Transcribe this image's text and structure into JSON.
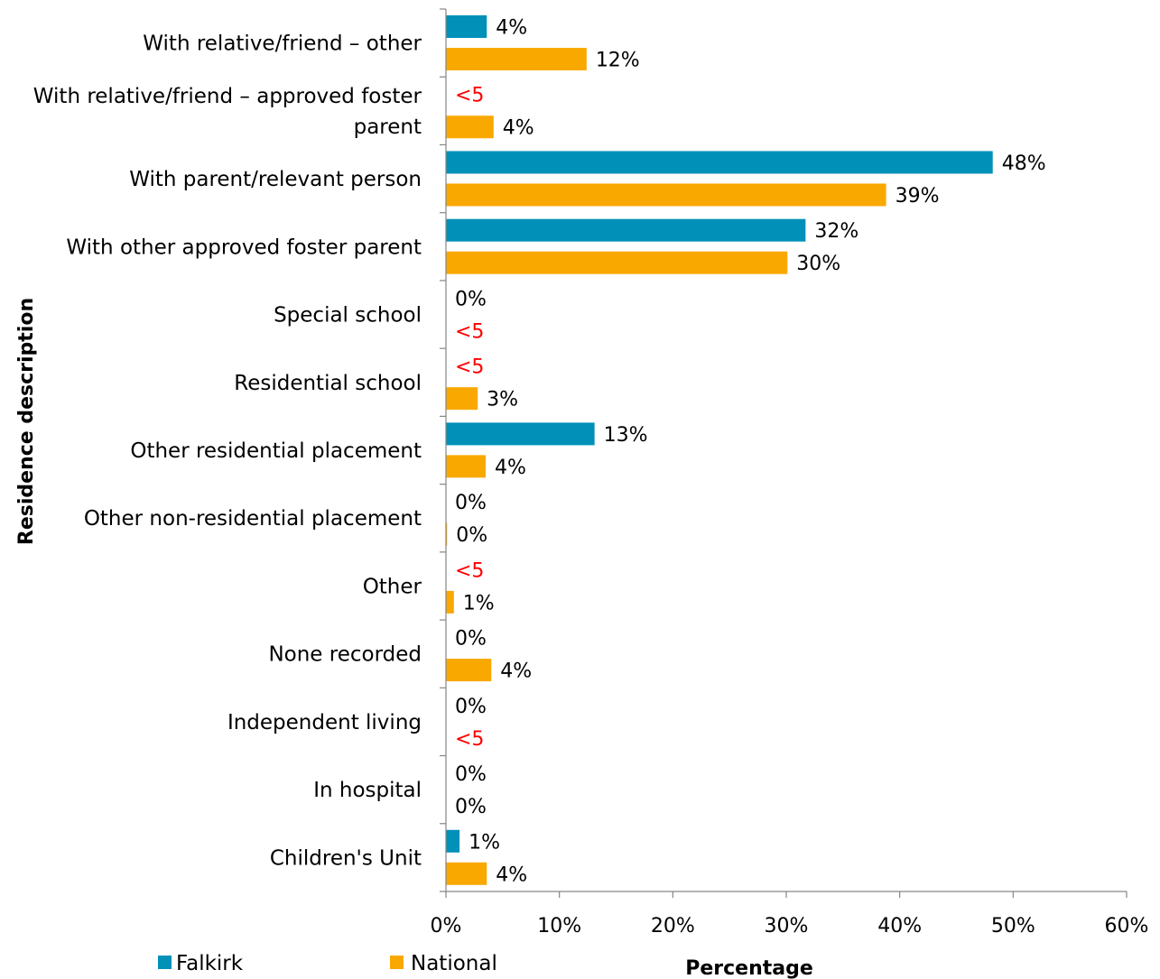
{
  "chart_data": {
    "type": "bar",
    "orientation": "horizontal",
    "xlabel": "Percentage",
    "ylabel": "Residence description",
    "xlim": [
      0,
      60
    ],
    "x_ticks": [
      "0%",
      "10%",
      "20%",
      "30%",
      "40%",
      "50%",
      "60%"
    ],
    "grid": false,
    "legend_position": "bottom-left",
    "colors": {
      "Falkirk": "#0090b8",
      "National": "#f9a800",
      "suppressed_label": "#ff0000"
    },
    "categories": [
      [
        "With relative/friend – other"
      ],
      [
        "With relative/friend – approved foster",
        "parent"
      ],
      [
        "With parent/relevant person"
      ],
      [
        "With other approved foster parent"
      ],
      [
        "Special school"
      ],
      [
        "Residential school"
      ],
      [
        "Other residential placement"
      ],
      [
        "Other non-residential placement"
      ],
      [
        "Other"
      ],
      [
        "None recorded"
      ],
      [
        "Independent living"
      ],
      [
        "In hospital"
      ],
      [
        "Children's Unit"
      ]
    ],
    "series": [
      {
        "name": "Falkirk",
        "values": [
          3.6,
          null,
          48.2,
          31.7,
          0,
          null,
          13.1,
          0,
          null,
          0,
          0,
          0,
          1.2
        ],
        "labels": [
          "4%",
          "<5",
          "48%",
          "32%",
          "0%",
          "<5",
          "13%",
          "0%",
          "<5",
          "0%",
          "0%",
          "0%",
          "1%"
        ]
      },
      {
        "name": "National",
        "values": [
          12.4,
          4.2,
          38.8,
          30.1,
          null,
          2.8,
          3.5,
          0.1,
          0.7,
          4.0,
          null,
          0,
          3.6
        ],
        "labels": [
          "12%",
          "4%",
          "39%",
          "30%",
          "<5",
          "3%",
          "4%",
          "0%",
          "1%",
          "4%",
          "<5",
          "0%",
          "4%"
        ]
      }
    ]
  }
}
